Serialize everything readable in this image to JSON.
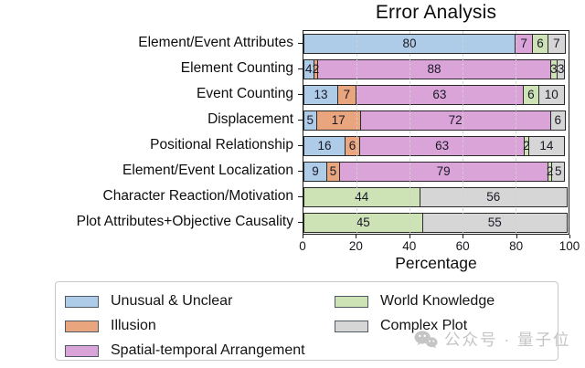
{
  "chart_data": {
    "type": "bar",
    "orientation": "horizontal",
    "stacked": true,
    "title": "Error Analysis",
    "xlabel": "Percentage",
    "xlim": [
      0,
      100
    ],
    "x_ticks": [
      0,
      20,
      40,
      60,
      80,
      100
    ],
    "grid": true,
    "legend_position": "bottom",
    "categories": [
      "Element/Event Attributes",
      "Element Counting",
      "Event Counting",
      "Displacement",
      "Positional Relationship",
      "Element/Event Localization",
      "Character Reaction/Motivation",
      "Plot Attributes+Objective Causality"
    ],
    "series": [
      {
        "name": "Unusual & Unclear",
        "color": "#aecbe8",
        "values": [
          80,
          4,
          13,
          5,
          16,
          9,
          0,
          0
        ]
      },
      {
        "name": "Illusion",
        "color": "#e8a57e",
        "values": [
          0,
          2,
          7,
          17,
          6,
          5,
          0,
          0
        ]
      },
      {
        "name": "Spatial-temporal Arrangement",
        "color": "#dba4d8",
        "values": [
          7,
          88,
          63,
          72,
          63,
          79,
          0,
          0
        ]
      },
      {
        "name": "World Knowledge",
        "color": "#cde3b6",
        "values": [
          6,
          3,
          6,
          0,
          2,
          2,
          44,
          45
        ]
      },
      {
        "name": "Complex Plot",
        "color": "#d6d6d6",
        "values": [
          7,
          3,
          10,
          6,
          14,
          5,
          56,
          55
        ]
      }
    ],
    "segment_border_color": "#2a2a2a"
  },
  "watermark": {
    "text": "公众号 · 量子位",
    "icon": "wechat-icon",
    "color": "#c5c5c5"
  }
}
